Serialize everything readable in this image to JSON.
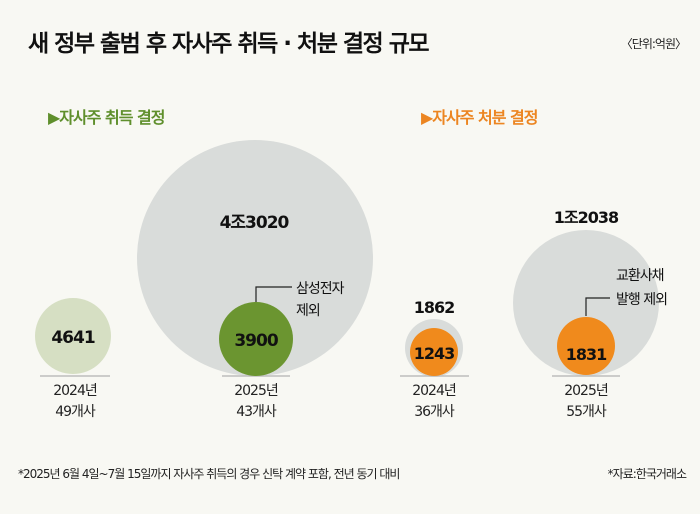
{
  "header": {
    "title": "새 정부 출범 후 자사주 취득 · 처분 결정 규모",
    "unit": "〈단위:억원〉"
  },
  "sections": {
    "acquisition": "▶자사주 취득 결정",
    "disposal": "▶자사주 처분 결정"
  },
  "footer": {
    "footnote": "*2025년 6월 4일~7월 15일까지 자사주 취득의 경우 신탁 계약 포함, 전년 동기 대비",
    "source": "*자료:한국거래소"
  },
  "colors": {
    "background": "#f8f8f3",
    "gray_circle": "#d9dcda",
    "light_green": "#d6dfc3",
    "green": "#6b9530",
    "orange": "#f08a1c",
    "green_text": "#5f8f2c",
    "orange_text": "#ec8521"
  },
  "chart_data": {
    "type": "bubble",
    "title": "새 정부 출범 후 자사주 취득 · 처분 결정 규모",
    "unit": "억원",
    "groups": [
      {
        "name": "자사주 취득 결정",
        "items": [
          {
            "year": "2024년",
            "count": "49개사",
            "total": 4641,
            "total_label": "4641"
          },
          {
            "year": "2025년",
            "count": "43개사",
            "total": 43020,
            "total_label": "4조3020",
            "excluding": 3900,
            "excluding_label": "3900",
            "annotation": [
              "삼성전자",
              "제외"
            ]
          }
        ]
      },
      {
        "name": "자사주 처분 결정",
        "items": [
          {
            "year": "2024년",
            "count": "36개사",
            "total": 1862,
            "total_label": "1862",
            "excluding": 1243,
            "excluding_label": "1243"
          },
          {
            "year": "2025년",
            "count": "55개사",
            "total": 12038,
            "total_label": "1조2038",
            "excluding": 1831,
            "excluding_label": "1831",
            "annotation": [
              "교환사채",
              "발행 제외"
            ]
          }
        ]
      }
    ]
  }
}
